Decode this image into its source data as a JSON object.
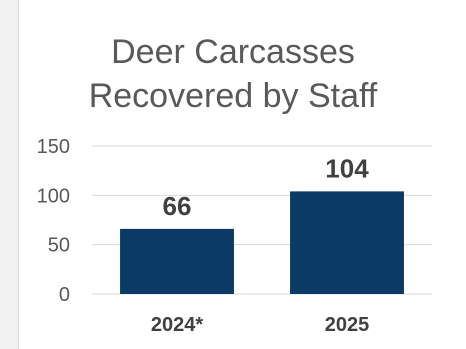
{
  "chart_data": {
    "type": "bar",
    "title": "Deer Carcasses\nRecovered by Staff",
    "categories": [
      "2024*",
      "2025"
    ],
    "values": [
      66,
      104
    ],
    "data_labels": [
      "66",
      "104"
    ],
    "ylim": [
      0,
      150
    ],
    "yticks": [
      0,
      50,
      100,
      150
    ],
    "xlabel": "",
    "ylabel": "",
    "grid": true,
    "legend": "none",
    "colors": {
      "bar": "#0b3a66",
      "grid": "#d9d9d9",
      "axis_text": "#595959",
      "category_text": "#404040",
      "data_label_text": "#404040"
    }
  }
}
